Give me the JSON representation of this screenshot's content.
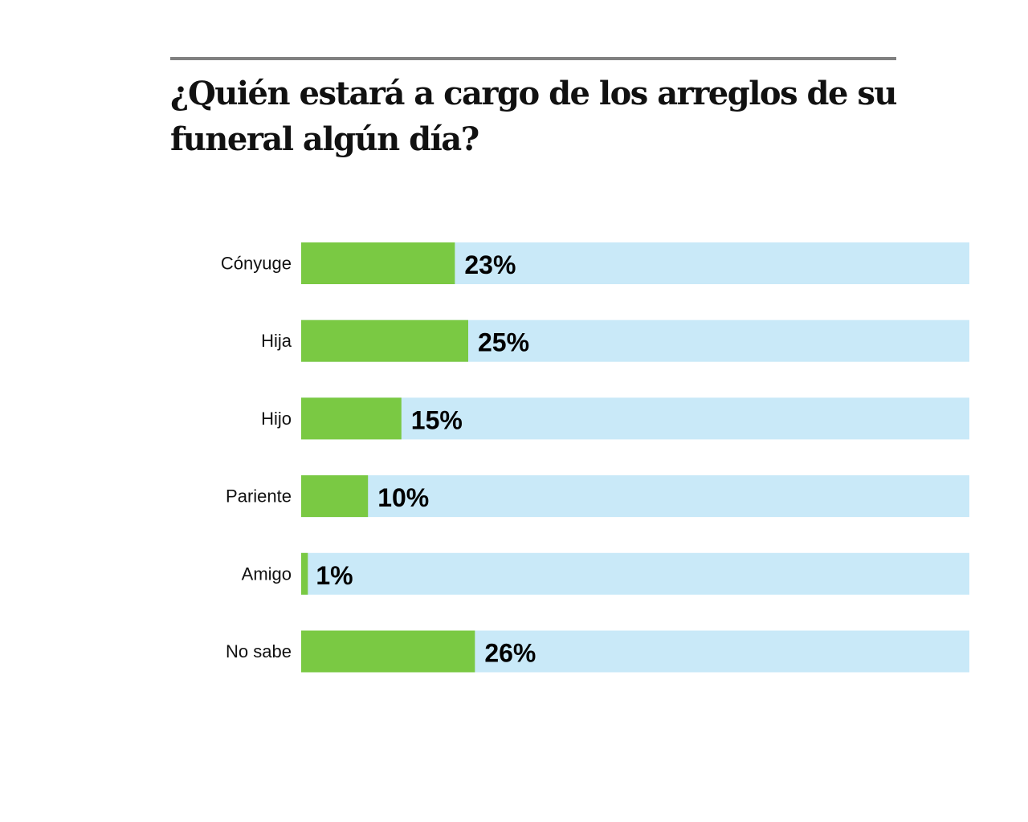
{
  "colors": {
    "bar": "#7ac943",
    "track": "#c9e9f8",
    "rule": "#808080"
  },
  "chart_data": {
    "type": "bar",
    "orientation": "horizontal",
    "title": "¿Quién estará a cargo de los arreglos de su funeral algún día?",
    "categories": [
      "Cónyuge",
      "Hija",
      "Hijo",
      "Pariente",
      "Amigo",
      "No sabe"
    ],
    "values": [
      23,
      25,
      15,
      10,
      1,
      26
    ],
    "value_labels": [
      "23%",
      "25%",
      "15%",
      "10%",
      "1%",
      "26%"
    ],
    "xlim": [
      0,
      100
    ],
    "grid": false,
    "legend": "none"
  }
}
